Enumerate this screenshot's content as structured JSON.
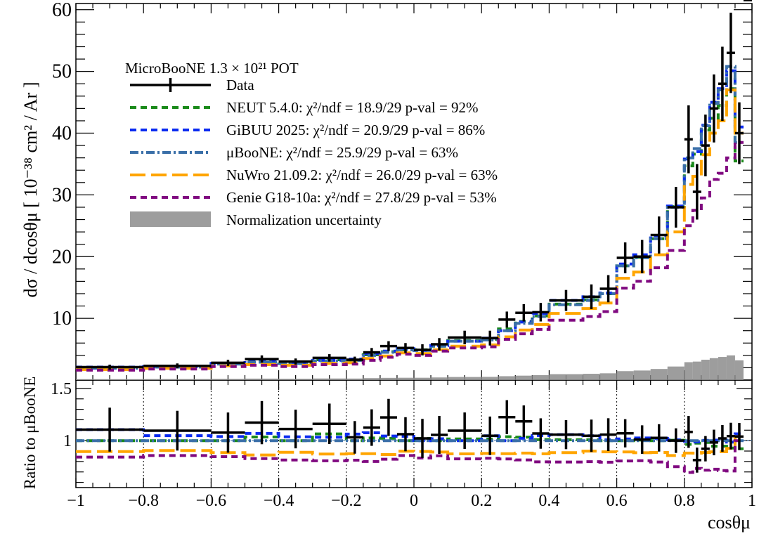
{
  "chart_data": {
    "type": "line",
    "title": "MicroBooNE 1.3 × 10²¹ POT",
    "xlabel": "cosθμ",
    "ylabel": "dσ / dcosθμ [ 10⁻³⁸ cm² / Ar ]",
    "ratio_ylabel": "Ratio to μBooNE",
    "xlim": [
      -1,
      1
    ],
    "ylim": [
      0,
      61
    ],
    "ratio_ylim": [
      0.55,
      1.58
    ],
    "x_ticks": [
      "−1",
      "−0.8",
      "−0.6",
      "−0.4",
      "−0.2",
      "0",
      "0.2",
      "0.4",
      "0.6",
      "0.8",
      "1"
    ],
    "y_ticks": [
      "10",
      "20",
      "30",
      "40",
      "50",
      "60"
    ],
    "ratio_y_ticks": [
      "1",
      "1.5"
    ],
    "legend_placement": "top-left",
    "bin_edges": [
      -1.0,
      -0.8,
      -0.6,
      -0.5,
      -0.4,
      -0.3,
      -0.2,
      -0.15,
      -0.1,
      -0.05,
      0.0,
      0.05,
      0.1,
      0.2,
      0.25,
      0.3,
      0.35,
      0.4,
      0.5,
      0.55,
      0.6,
      0.65,
      0.7,
      0.75,
      0.8,
      0.825,
      0.85,
      0.875,
      0.9,
      0.925,
      0.95,
      0.975,
      1.0
    ],
    "data": {
      "name": "Data",
      "values": [
        2.1,
        2.3,
        2.8,
        3.4,
        3.0,
        3.6,
        3.3,
        4.5,
        5.5,
        5.2,
        4.9,
        5.8,
        6.9,
        6.8,
        9.8,
        10.9,
        11.0,
        12.9,
        13.5,
        14.8,
        19.8,
        20.0,
        23.5,
        28.0,
        39.0,
        30.5,
        38.0,
        44.0,
        48.0,
        53.0,
        40.0
      ],
      "errors": [
        0.4,
        0.4,
        0.5,
        0.6,
        0.5,
        0.6,
        0.5,
        0.7,
        0.8,
        0.8,
        0.9,
        1.0,
        1.1,
        1.2,
        1.3,
        1.4,
        1.5,
        1.7,
        2.0,
        2.2,
        2.5,
        2.7,
        3.0,
        3.3,
        5.5,
        4.5,
        5.0,
        5.5,
        6.0,
        6.5,
        5.0
      ]
    },
    "series": [
      {
        "name": "NEUT 5.4.0: χ²/ndf = 18.9/29 p-val = 92%",
        "color": "#1a8a1a",
        "dash": "9,6",
        "values": [
          1.9,
          2.1,
          2.6,
          3.0,
          2.7,
          3.3,
          3.2,
          4.1,
          4.6,
          4.9,
          4.9,
          5.5,
          6.4,
          6.6,
          8.3,
          9.5,
          10.4,
          12.3,
          13.0,
          14.0,
          18.5,
          19.9,
          22.9,
          28.1,
          34.7,
          36.6,
          40.5,
          42.4,
          44.5,
          47.2,
          35.5
        ]
      },
      {
        "name": "GiBUU 2025: χ²/ndf = 20.9/29 p-val = 86%",
        "color": "#0a2bf0",
        "dash": "9,6",
        "values": [
          2.1,
          2.2,
          2.7,
          3.1,
          2.8,
          3.2,
          3.4,
          4.3,
          4.7,
          5.1,
          4.8,
          5.6,
          6.3,
          6.8,
          8.0,
          9.4,
          10.8,
          12.9,
          13.5,
          14.1,
          18.8,
          20.3,
          23.4,
          28.2,
          35.8,
          37.0,
          41.3,
          45.0,
          47.2,
          50.1,
          41.0
        ]
      },
      {
        "name": "μBooNE: χ²/ndf = 25.9/29 p-val = 63%",
        "color": "#3a6fa8",
        "dash": "12,4,3,4",
        "values": [
          1.9,
          2.1,
          2.6,
          2.9,
          2.7,
          3.1,
          3.2,
          4.0,
          4.5,
          4.9,
          4.8,
          5.5,
          6.3,
          6.5,
          8.0,
          9.2,
          10.3,
          12.2,
          12.9,
          14.0,
          18.5,
          19.8,
          22.9,
          28.0,
          36.0,
          37.5,
          41.2,
          44.8,
          47.0,
          50.8,
          38.5
        ]
      },
      {
        "name": "NuWro 21.09.2: χ²/ndf = 26.0/29 p-val = 63%",
        "color": "#ffa500",
        "dash": "22,8",
        "values": [
          1.7,
          1.9,
          2.3,
          2.5,
          2.4,
          2.7,
          2.8,
          3.5,
          3.9,
          4.4,
          4.3,
          4.9,
          5.5,
          5.7,
          7.0,
          8.1,
          9.0,
          10.8,
          11.6,
          12.5,
          16.5,
          17.5,
          20.3,
          24.0,
          31.7,
          33.0,
          36.5,
          40.0,
          42.0,
          47.0,
          40.0
        ]
      },
      {
        "name": "Genie G18-10a: χ²/ndf = 27.8/29 p-val = 53%",
        "color": "#800a80",
        "dash": "9,6",
        "values": [
          1.6,
          1.8,
          2.2,
          2.4,
          2.2,
          2.5,
          2.6,
          3.2,
          3.7,
          4.2,
          4.0,
          4.7,
          5.2,
          5.4,
          6.6,
          7.5,
          8.2,
          9.7,
          10.3,
          11.1,
          14.9,
          16.0,
          18.2,
          21.0,
          25.0,
          27.5,
          29.5,
          32.5,
          33.5,
          36.0,
          38.5
        ]
      }
    ],
    "normalization_uncertainty": {
      "name": "Normalization uncertainty",
      "color": "#8c8c8c",
      "values": [
        0.15,
        0.17,
        0.2,
        0.24,
        0.22,
        0.26,
        0.25,
        0.32,
        0.36,
        0.38,
        0.38,
        0.43,
        0.5,
        0.52,
        0.63,
        0.72,
        0.8,
        0.96,
        1.02,
        1.1,
        1.45,
        1.55,
        1.8,
        2.2,
        2.9,
        3.0,
        3.3,
        3.55,
        3.75,
        4.0,
        3.2
      ]
    }
  }
}
